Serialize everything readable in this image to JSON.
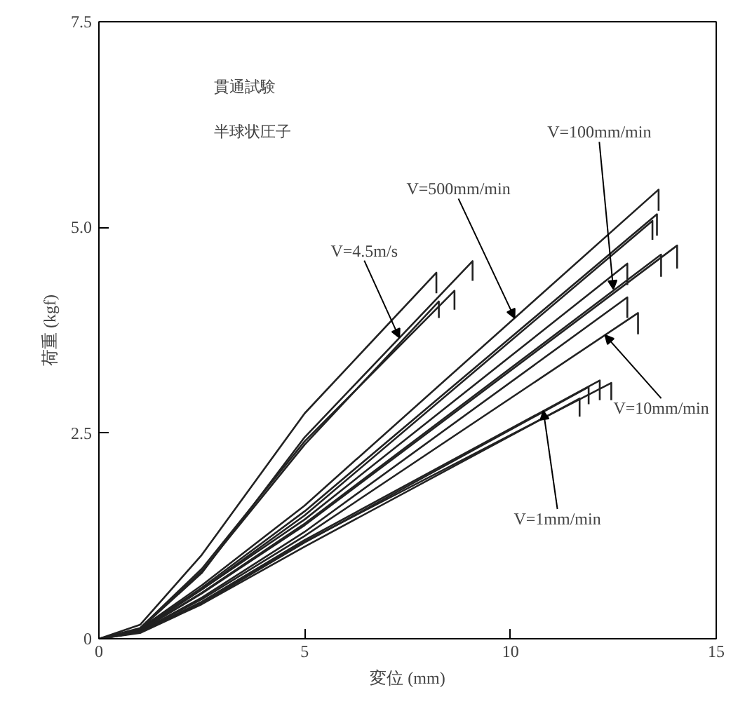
{
  "chart_data": {
    "type": "line",
    "xlabel": "変位 (mm)",
    "ylabel": "荷重 (kgf)",
    "xlim": [
      0,
      15
    ],
    "ylim": [
      0,
      7.5
    ],
    "xticks": [
      0,
      5,
      10,
      15
    ],
    "yticks": [
      0,
      {
        "value": 2.5,
        "label": "2.5"
      },
      {
        "value": 5,
        "label": "5.0"
      },
      {
        "value": 7.5,
        "label": "7.5"
      }
    ],
    "grid": false,
    "marker": "none",
    "line_style": "solid",
    "series": [
      {
        "color": "#222222",
        "x": [
          0,
          1,
          2.5,
          5,
          8.2,
          8.2
        ],
        "values": [
          0,
          0.17,
          1.02,
          2.74,
          4.45,
          4.2
        ]
      },
      {
        "color": "#222222",
        "x": [
          0,
          1,
          2.5,
          5,
          9.08,
          9.08
        ],
        "values": [
          0,
          0.12,
          0.8,
          2.45,
          4.59,
          4.35
        ]
      },
      {
        "color": "#222222",
        "x": [
          0,
          1,
          2.5,
          5,
          8.64,
          8.64
        ],
        "values": [
          0,
          0.13,
          0.85,
          2.4,
          4.23,
          4.0
        ]
      },
      {
        "color": "#222222",
        "x": [
          0,
          1,
          2.5,
          5,
          8.26,
          8.26
        ],
        "values": [
          0,
          0.12,
          0.82,
          2.36,
          4.1,
          3.9
        ]
      },
      {
        "color": "#222222",
        "x": [
          0,
          1,
          2.5,
          5,
          13.6,
          13.6
        ],
        "values": [
          0,
          0.12,
          0.65,
          1.62,
          5.46,
          5.2
        ]
      },
      {
        "color": "#222222",
        "x": [
          0,
          1,
          2.5,
          5,
          13.56,
          13.56
        ],
        "values": [
          0,
          0.11,
          0.62,
          1.55,
          5.16,
          4.9
        ]
      },
      {
        "color": "#222222",
        "x": [
          0,
          1,
          2.5,
          5,
          13.45,
          13.45
        ],
        "values": [
          0,
          0.11,
          0.6,
          1.5,
          5.08,
          4.85
        ]
      },
      {
        "color": "#222222",
        "x": [
          0,
          1,
          2.5,
          5,
          12.84,
          12.84
        ],
        "values": [
          0,
          0.1,
          0.6,
          1.45,
          4.56,
          4.3
        ]
      },
      {
        "color": "#222222",
        "x": [
          0,
          1,
          2.5,
          5,
          14.05,
          14.05
        ],
        "values": [
          0,
          0.1,
          0.55,
          1.38,
          4.78,
          4.5
        ]
      },
      {
        "color": "#222222",
        "x": [
          0,
          1,
          2.5,
          5,
          13.66,
          13.66
        ],
        "values": [
          0,
          0.1,
          0.56,
          1.4,
          4.67,
          4.4
        ]
      },
      {
        "color": "#222222",
        "x": [
          0,
          1,
          2.5,
          5,
          12.84,
          12.84
        ],
        "values": [
          0,
          0.09,
          0.5,
          1.3,
          4.15,
          3.9
        ]
      },
      {
        "color": "#222222",
        "x": [
          0,
          1,
          2.5,
          5,
          13.1,
          13.1
        ],
        "values": [
          0,
          0.09,
          0.48,
          1.25,
          3.96,
          3.7
        ]
      },
      {
        "color": "#222222",
        "x": [
          0,
          1,
          2.5,
          5,
          12.17,
          12.17
        ],
        "values": [
          0,
          0.08,
          0.45,
          1.2,
          3.14,
          2.9
        ]
      },
      {
        "color": "#222222",
        "x": [
          0,
          1,
          2.5,
          5,
          12.45,
          12.45
        ],
        "values": [
          0,
          0.08,
          0.44,
          1.18,
          3.11,
          2.9
        ]
      },
      {
        "color": "#222222",
        "x": [
          0,
          1,
          2.5,
          5,
          11.9,
          11.9
        ],
        "values": [
          0,
          0.08,
          0.43,
          1.17,
          3.06,
          2.85
        ]
      },
      {
        "color": "#222222",
        "x": [
          0,
          1,
          2.5,
          5,
          11.68,
          11.68
        ],
        "values": [
          0,
          0.07,
          0.42,
          1.12,
          2.92,
          2.7
        ]
      }
    ],
    "annotations": [
      "貫通試験",
      "半球状圧子",
      {
        "text": "V=4.5m/s",
        "x": 7.3,
        "y": 3.66
      },
      {
        "text": "V=500mm/min",
        "x": 10.1,
        "y": 3.9
      },
      {
        "text": "V=100mm/min",
        "x": 12.5,
        "y": 4.25
      },
      {
        "text": "V=10mm/min",
        "x": 12.3,
        "y": 3.69
      },
      {
        "text": "V=1mm/min",
        "x": 10.8,
        "y": 2.77
      }
    ]
  }
}
